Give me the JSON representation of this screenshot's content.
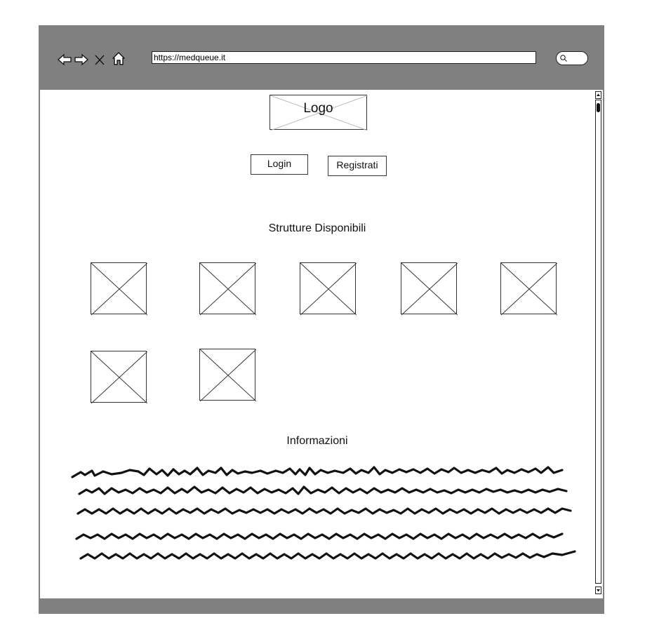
{
  "browser": {
    "url": "https://medqueue.it",
    "nav_icons": [
      "back-arrow-icon",
      "forward-arrow-icon",
      "close-icon",
      "home-icon"
    ],
    "search_icon": "search-icon"
  },
  "page": {
    "logo_text": "Logo",
    "login_label": "Login",
    "register_label": "Registrati",
    "structures_title": "Strutture Disponibili",
    "structures_count": 7,
    "info_title": "Informazioni",
    "info_text_lines": 5
  },
  "colors": {
    "window_frame": "#808080",
    "content_bg": "#ffffff",
    "stroke": "#222222"
  }
}
